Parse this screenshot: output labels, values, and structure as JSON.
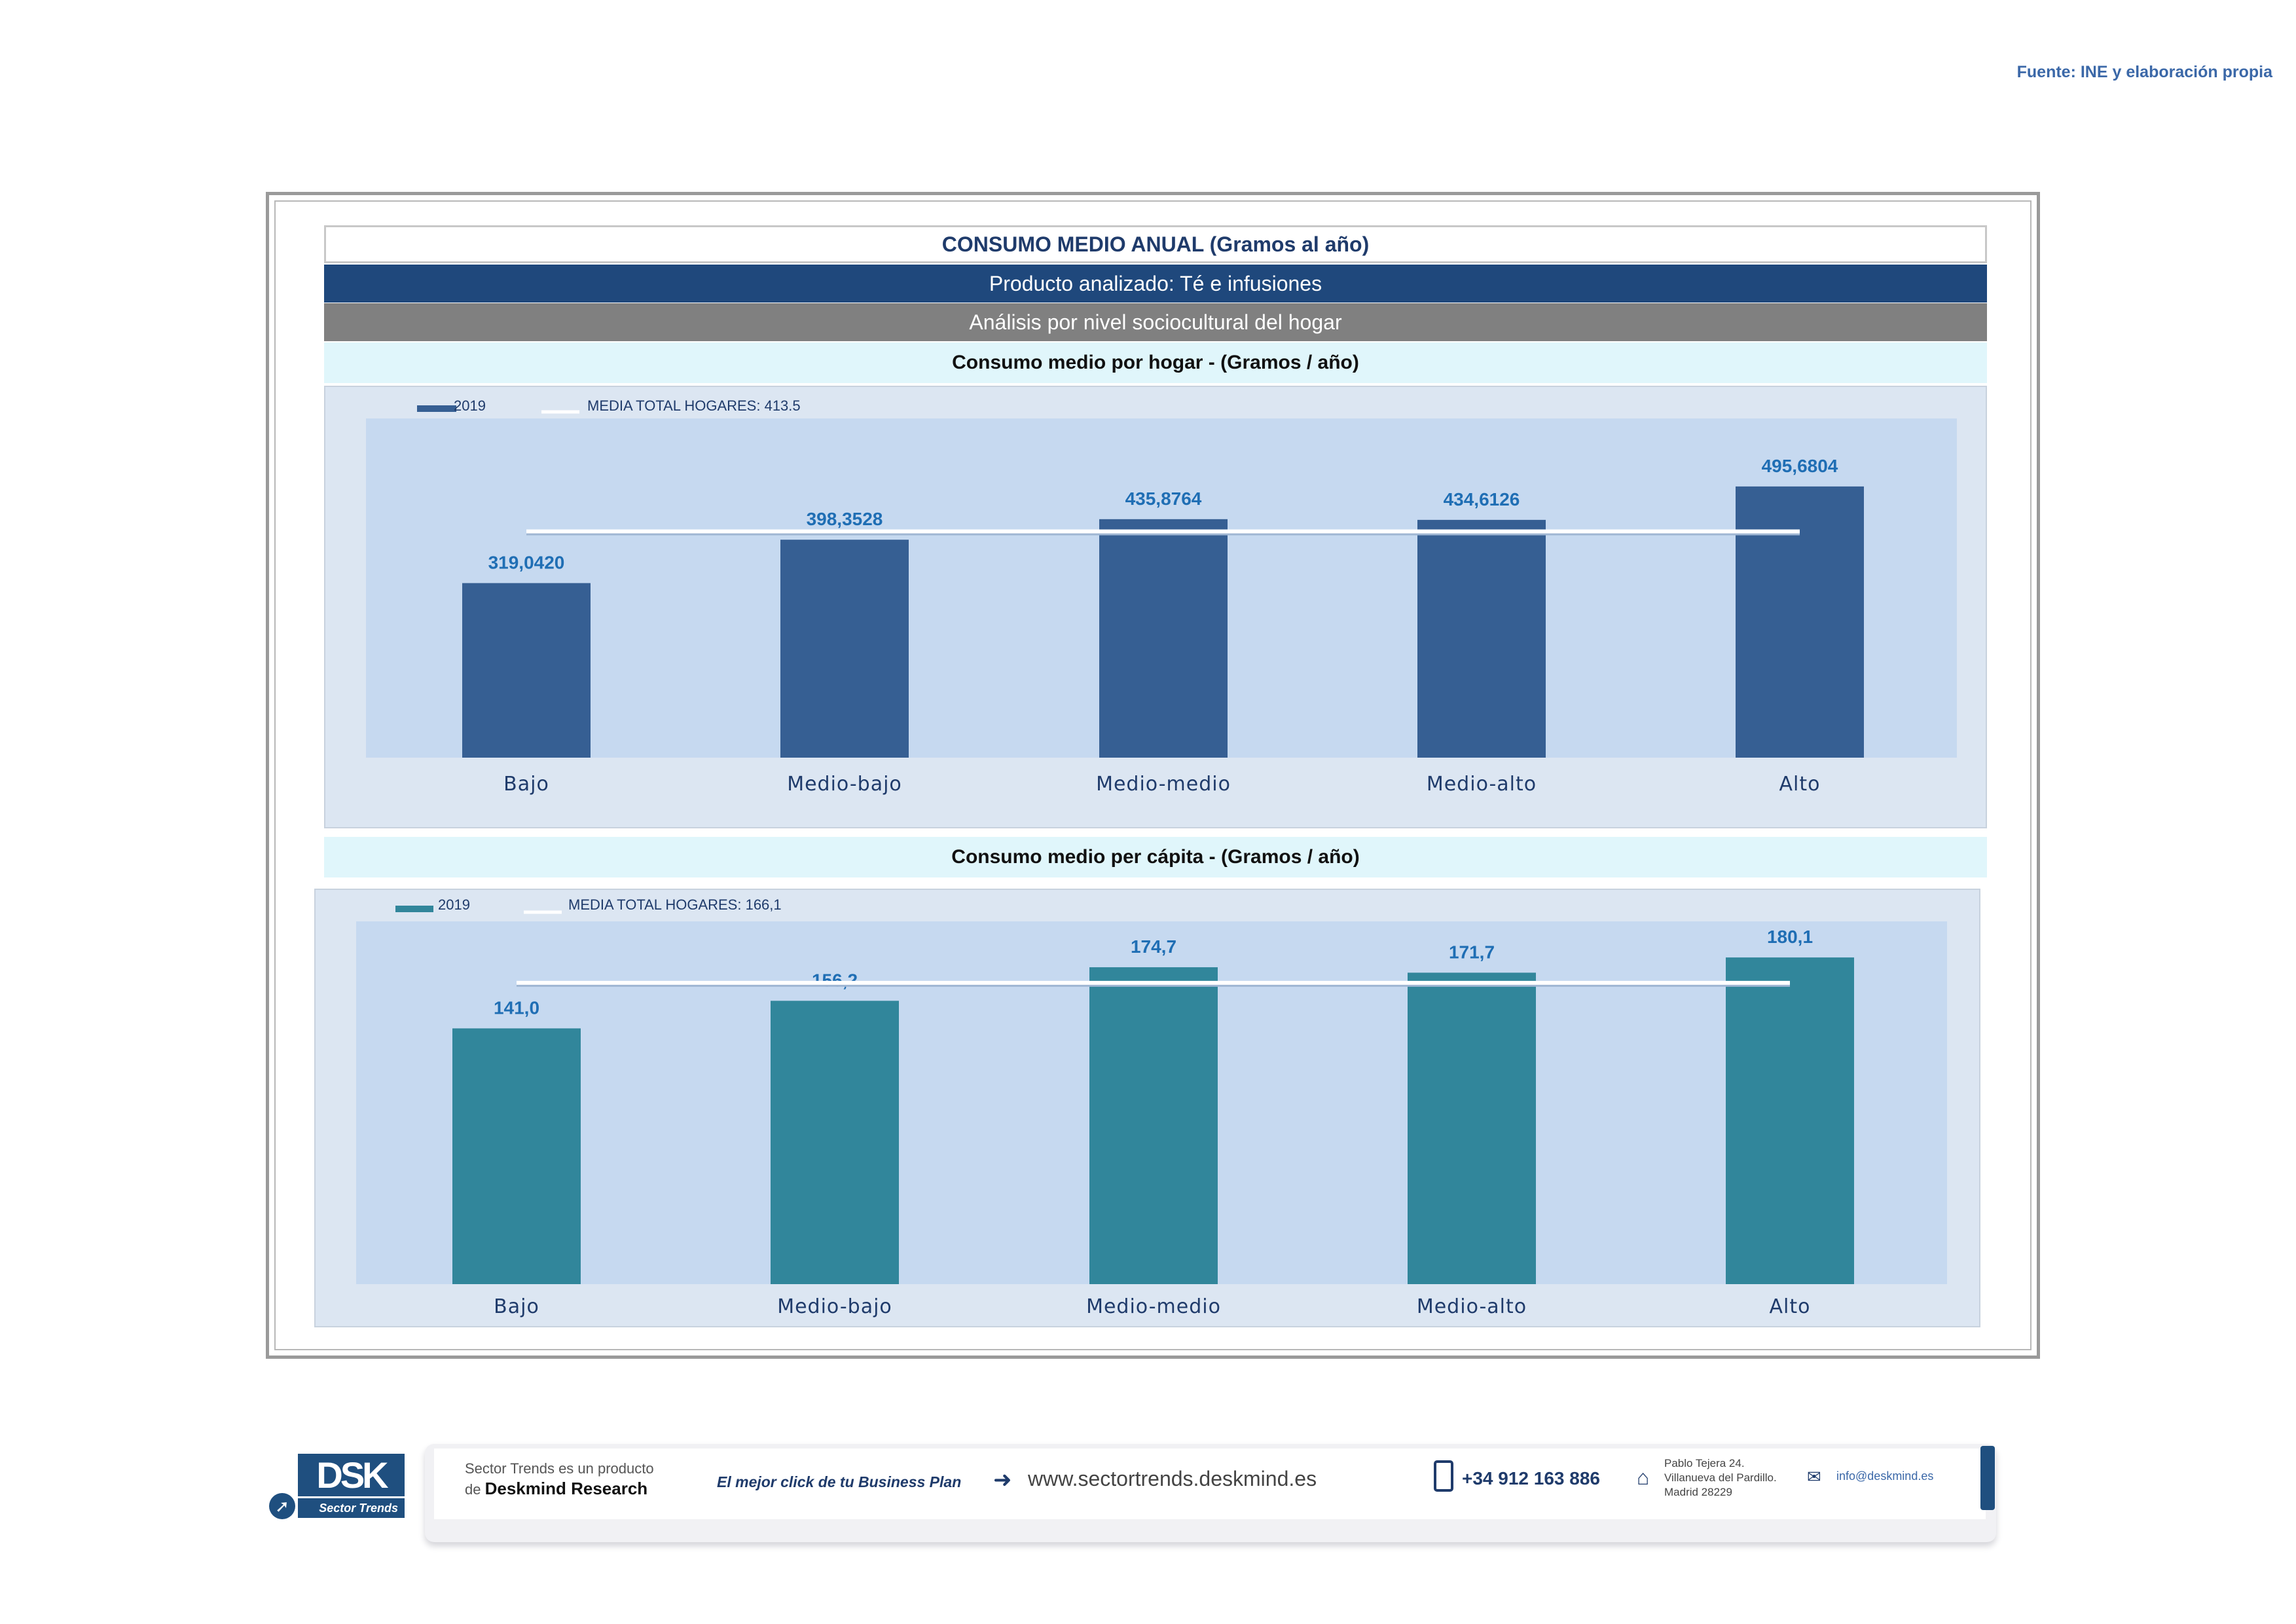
{
  "source": "Fuente: INE y elaboración propia",
  "header": {
    "title": "CONSUMO MEDIO ANUAL (Gramos al año)",
    "product": "Producto analizado: Té e infusiones",
    "analysis": "Análisis por nivel sociocultural del hogar"
  },
  "charts_meta": [
    {
      "section_title": "Consumo medio por hogar -  (Gramos / año)"
    },
    {
      "section_title": "Consumo medio per cápita -  (Gramos / año)"
    }
  ],
  "colors": {
    "bar_hogar": "#365f93",
    "bar_percapita": "#31869b",
    "plot_bg": "#c6d9f0",
    "outer_bg": "#dce6f2",
    "value_label": "#1f6eb4",
    "axis_text": "#1f3b6b"
  },
  "chart_data": [
    {
      "type": "bar",
      "categories": [
        "Bajo",
        "Medio-bajo",
        "Medio-medio",
        "Medio-alto",
        "Alto"
      ],
      "series": [
        {
          "name": "2019",
          "values": [
            319.042,
            398.3528,
            435.8764,
            434.6126,
            495.6804
          ]
        }
      ],
      "value_labels": [
        "319,0420",
        "398,3528",
        "435,8764",
        "434,6126",
        "495,6804"
      ],
      "reference_line": {
        "name": "MEDIA TOTAL  HOGARES:   413.5",
        "value": 413.5
      },
      "ylim": [
        0,
        620
      ],
      "legend": "top-left",
      "grid": false
    },
    {
      "type": "bar",
      "categories": [
        "Bajo",
        "Medio-bajo",
        "Medio-medio",
        "Medio-alto",
        "Alto"
      ],
      "series": [
        {
          "name": "2019",
          "values": [
            141.0,
            156.2,
            174.7,
            171.7,
            180.1
          ]
        }
      ],
      "value_labels": [
        "141,0",
        "156,2",
        "174,7",
        "171,7",
        "180,1"
      ],
      "reference_line": {
        "name": "MEDIA TOTAL  HOGARES:   166,1",
        "value": 166.1
      },
      "ylim": [
        0,
        200
      ],
      "legend": "top-left",
      "grid": false
    }
  ],
  "footer": {
    "logo": "DSK",
    "logo_sub": "Sector Trends",
    "product_line1": "Sector Trends es un producto",
    "product_line2_prefix": "de ",
    "product_line2_brand": "Deskmind Research",
    "slogan": "El mejor click de tu Business Plan",
    "website": "www.sectortrends.deskmind.es",
    "phone": "+34 912 163 886",
    "address_line1": "Pablo Tejera 24.",
    "address_line2": "Villanueva del Pardillo.",
    "address_line3": "Madrid 28229",
    "email": "info@deskmind.es"
  }
}
